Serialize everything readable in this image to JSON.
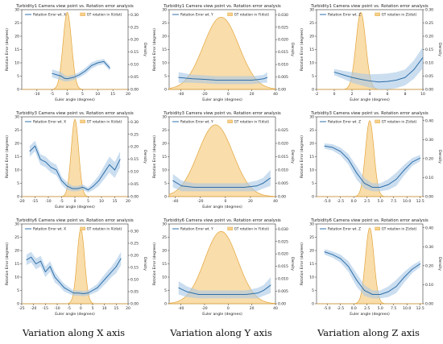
{
  "captions": [
    "Variation along X axis",
    "Variation along Y axis",
    "Variation along Z axis"
  ],
  "colors": {
    "line": "#2f6fa8",
    "band": "#a9c8e6",
    "density_fill": "#f7d18d",
    "density_edge": "#e3a53d"
  },
  "chart_data": [
    {
      "type": "line",
      "title": "Turbidity1 Camera view point vs. Rotation error analysis",
      "xlabel": "Euler angle (degrees)",
      "ylabel": "Rotation Error (degrees)",
      "y2label": "Density",
      "legend": [
        "Rotation Error wt. X",
        "GT rotation in X(dist)"
      ],
      "xlim": [
        -15,
        20
      ],
      "ylim": [
        0,
        30
      ],
      "y2lim": [
        0,
        0.32
      ],
      "xticks": [
        -10,
        -5,
        0,
        5,
        10,
        15,
        20
      ],
      "yticks": [
        0,
        5,
        10,
        15,
        20,
        25,
        30
      ],
      "y2ticks": [
        0.0,
        0.05,
        0.1,
        0.15,
        0.2,
        0.25,
        0.3
      ],
      "x": [
        -5,
        -3.5,
        -2,
        -1,
        0,
        2,
        4,
        6,
        8,
        10,
        12,
        14
      ],
      "y": [
        6,
        5.5,
        5,
        4.2,
        4,
        4.5,
        5.5,
        7,
        9,
        10,
        10.5,
        8
      ],
      "band": [
        1.5,
        1.5,
        1.5,
        1.2,
        1,
        1,
        1,
        1.2,
        1.2,
        1,
        1,
        1
      ],
      "density": {
        "center": 0,
        "width": 1.4,
        "peak": 0.31,
        "shape": "normal"
      }
    },
    {
      "type": "line",
      "title": "Turbidity1 Camera view point vs. Rotation error analysis",
      "xlabel": "Euler angle (degrees)",
      "ylabel": "Rotation Error (degrees)",
      "y2label": "Density",
      "legend": [
        "Rotation Error wt. Y",
        "GT rotation in Y(dist)"
      ],
      "xlim": [
        -50,
        40
      ],
      "ylim": [
        0,
        30
      ],
      "y2lim": [
        0,
        0.032
      ],
      "xticks": [
        -40,
        -20,
        0,
        20,
        40
      ],
      "yticks": [
        0,
        5,
        10,
        15,
        20,
        25,
        30
      ],
      "y2ticks": [
        0.0,
        0.005,
        0.01,
        0.015,
        0.02,
        0.025,
        0.03
      ],
      "x": [
        -42,
        -30,
        -20,
        -10,
        0,
        10,
        20,
        25,
        30,
        33
      ],
      "y": [
        4.5,
        4,
        3.8,
        3.5,
        3.5,
        3.5,
        3.5,
        3.7,
        4,
        4.5
      ],
      "band": [
        2,
        1.5,
        1.5,
        1.5,
        1.5,
        1.5,
        1.5,
        1.5,
        1.5,
        2
      ],
      "density": {
        "center": -6,
        "width": 15,
        "peak": 0.029,
        "shape": "normal"
      }
    },
    {
      "type": "line",
      "title": "Turbidity1 Camera view point vs. Rotation error analysis",
      "xlabel": "Euler angle (degrees)",
      "ylabel": "Rotation Error (degrees)",
      "y2label": "Density",
      "legend": [
        "Rotation Error wt. Z",
        "GT rotation in Z(dist)"
      ],
      "xlim": [
        -2,
        10
      ],
      "ylim": [
        0,
        30
      ],
      "y2lim": [
        0,
        0.3
      ],
      "xticks": [
        -2,
        0,
        2,
        4,
        6,
        8,
        10
      ],
      "yticks": [
        0,
        5,
        10,
        15,
        20,
        25,
        30
      ],
      "y2ticks": [
        0.0,
        0.05,
        0.1,
        0.15,
        0.2,
        0.25,
        0.3
      ],
      "x": [
        0,
        1,
        2,
        3,
        4,
        5,
        6,
        7,
        8,
        9,
        10
      ],
      "y": [
        6.5,
        5.5,
        4.5,
        3.8,
        3.2,
        2.8,
        3,
        3.5,
        4.5,
        7.5,
        12
      ],
      "band": [
        1.2,
        1.5,
        2,
        2.2,
        2.5,
        3,
        3,
        3,
        3,
        3.5,
        4
      ],
      "density": {
        "center": 3,
        "width": 0.55,
        "peak": 0.29,
        "shape": "normal"
      }
    },
    {
      "type": "line",
      "title": "Turbidity3 Camera view point vs. Rotation error analysis",
      "xlabel": "Euler angle (degrees)",
      "ylabel": "Rotation Error (degrees)",
      "y2label": "Density",
      "legend": [
        "Rotation Error wt. X",
        "GT rotation in X(dist)"
      ],
      "xlim": [
        -20,
        20
      ],
      "ylim": [
        0,
        30
      ],
      "y2lim": [
        0,
        0.32
      ],
      "xticks": [
        -20,
        -15,
        -10,
        -5,
        0,
        5,
        10,
        15,
        20
      ],
      "yticks": [
        0,
        5,
        10,
        15,
        20,
        25,
        30
      ],
      "y2ticks": [
        0.0,
        0.05,
        0.1,
        0.15,
        0.2,
        0.25,
        0.3
      ],
      "x": [
        -17,
        -15,
        -13,
        -11,
        -9,
        -7,
        -5,
        -3,
        -1,
        1,
        3,
        5,
        7,
        9,
        11,
        13,
        15,
        17
      ],
      "y": [
        17,
        19,
        14,
        13,
        11,
        10,
        6,
        4,
        3,
        3,
        3.5,
        2.5,
        4,
        6,
        9,
        12,
        10,
        14
      ],
      "band": [
        2,
        2,
        2,
        2,
        2,
        2,
        1.5,
        1.5,
        1,
        1,
        1,
        1,
        1.5,
        2,
        2.5,
        3,
        3,
        3
      ],
      "density": {
        "center": 0,
        "width": 1.4,
        "peak": 0.31,
        "shape": "normal"
      }
    },
    {
      "type": "line",
      "title": "Turbidity3 Camera view point vs. Rotation error analysis",
      "xlabel": "Euler angle (degrees)",
      "ylabel": "Rotation Error (degrees)",
      "y2label": "Density",
      "legend": [
        "Rotation Error wt. Y",
        "GT rotation in Y(dist)"
      ],
      "xlim": [
        -45,
        40
      ],
      "ylim": [
        0,
        30
      ],
      "y2lim": [
        0,
        0.03
      ],
      "xticks": [
        -40,
        -20,
        0,
        20,
        40
      ],
      "yticks": [
        0,
        5,
        10,
        15,
        20,
        25,
        30
      ],
      "y2ticks": [
        0.0,
        0.005,
        0.01,
        0.015,
        0.02,
        0.025
      ],
      "x": [
        -42,
        -35,
        -25,
        -15,
        -5,
        5,
        15,
        25,
        30,
        33,
        36
      ],
      "y": [
        6,
        4,
        3.5,
        3.5,
        3.5,
        3.5,
        3.5,
        4,
        5,
        6,
        7
      ],
      "band": [
        2.5,
        2,
        1.5,
        1.5,
        1.5,
        1.5,
        1.5,
        2,
        2,
        2.5,
        3
      ],
      "density": {
        "center": -8,
        "width": 14,
        "peak": 0.027,
        "shape": "normal"
      }
    },
    {
      "type": "line",
      "title": "Turbidity3 Camera view point vs. Rotation error analysis",
      "xlabel": "",
      "ylabel": "Rotation Error (degrees)",
      "y2label": "Density",
      "legend": [
        "Rotation Error wt. Z",
        "GT rotation in Z(dist)"
      ],
      "xlim": [
        -7,
        13
      ],
      "ylim": [
        0,
        30
      ],
      "y2lim": [
        0,
        0.42
      ],
      "xticks": [
        -5.0,
        -2.5,
        0.0,
        2.5,
        5.0,
        7.5,
        10.0,
        12.5
      ],
      "yticks": [
        0,
        5,
        10,
        15,
        20,
        25,
        30
      ],
      "y2ticks": [
        0.0,
        0.1,
        0.2,
        0.3,
        0.4
      ],
      "x": [
        -5.5,
        -4,
        -2.5,
        -1,
        0.5,
        2,
        3.5,
        5,
        6.5,
        8,
        9.5,
        11,
        12.5
      ],
      "y": [
        19,
        18.5,
        17,
        14,
        9,
        5,
        3.5,
        3.5,
        4.5,
        6.5,
        10,
        13,
        14.5
      ],
      "band": [
        1,
        1.2,
        1.5,
        2,
        2.5,
        2,
        1.5,
        1.5,
        2,
        2.5,
        2,
        1.5,
        1.2
      ],
      "density": {
        "center": 3,
        "width": 0.8,
        "peak": 0.4,
        "shape": "normal"
      }
    },
    {
      "type": "line",
      "title": "Turbidity6 Camera view point vs. Rotation error analysis",
      "xlabel": "Euler angle (degrees)",
      "ylabel": "Rotation Error (degrees)",
      "y2label": "Density",
      "legend": [
        "Rotation Error wt. X",
        "GT rotation in X(dist)"
      ],
      "xlim": [
        -25,
        20
      ],
      "ylim": [
        0,
        30
      ],
      "y2lim": [
        0,
        0.33
      ],
      "xticks": [
        -25,
        -20,
        -15,
        -10,
        -5,
        0,
        5,
        10,
        15,
        20
      ],
      "yticks": [
        0,
        5,
        10,
        15,
        20,
        25,
        30
      ],
      "y2ticks": [
        0.0,
        0.05,
        0.1,
        0.15,
        0.2,
        0.25,
        0.3
      ],
      "x": [
        -23,
        -21,
        -19,
        -17,
        -15,
        -13,
        -11,
        -9,
        -7,
        -5,
        -3,
        -1,
        1,
        3,
        5,
        7,
        9,
        11,
        13,
        15,
        17
      ],
      "y": [
        16.5,
        17.5,
        15,
        16,
        12,
        14,
        10,
        8,
        6,
        5,
        4,
        4,
        3.8,
        4,
        5,
        6,
        8,
        10,
        12,
        14,
        17
      ],
      "band": [
        2,
        2,
        2,
        2,
        2,
        2,
        2,
        1.5,
        1.5,
        1.2,
        1,
        1,
        1,
        1,
        1.2,
        1.5,
        1.8,
        2,
        2,
        2.5,
        2.5
      ],
      "density": {
        "center": 0,
        "width": 1.6,
        "peak": 0.31,
        "shape": "normal"
      }
    },
    {
      "type": "line",
      "title": "Turbidity6 Camera view point vs. Rotation error analysis",
      "xlabel": "Euler angle (degrees)",
      "ylabel": "Rotation Error (degrees)",
      "y2label": "Density",
      "legend": [
        "Rotation Error wt. Y",
        "GT rotation in Y(dist)"
      ],
      "xlim": [
        -50,
        40
      ],
      "ylim": [
        0,
        30
      ],
      "y2lim": [
        0,
        0.032
      ],
      "xticks": [
        -40,
        -20,
        0,
        20,
        40
      ],
      "yticks": [
        0,
        5,
        10,
        15,
        20,
        25,
        30
      ],
      "y2ticks": [
        0.0,
        0.005,
        0.01,
        0.015,
        0.02,
        0.025,
        0.03
      ],
      "x": [
        -42,
        -35,
        -25,
        -15,
        -5,
        5,
        15,
        25,
        30,
        33,
        36
      ],
      "y": [
        6,
        4.5,
        3.5,
        3.5,
        3.5,
        3.5,
        3.5,
        4,
        5,
        6,
        7
      ],
      "band": [
        2.5,
        2,
        1.5,
        1.5,
        1.5,
        1.5,
        1.5,
        2,
        2,
        2.5,
        3
      ],
      "density": {
        "center": -6,
        "width": 14,
        "peak": 0.029,
        "shape": "normal"
      }
    },
    {
      "type": "line",
      "title": "Turbidity6 Camera view point vs. Rotation error analysis",
      "xlabel": "Euler angle (degrees)",
      "ylabel": "Rotation Error (degrees)",
      "y2label": "Density",
      "legend": [
        "Rotation Error wt. Z",
        "GT rotation in Z(dist)"
      ],
      "xlim": [
        -7,
        13
      ],
      "ylim": [
        0,
        30
      ],
      "y2lim": [
        0,
        0.42
      ],
      "xticks": [
        -5.0,
        -2.5,
        0.0,
        2.5,
        5.0,
        7.5,
        10.0,
        12.5
      ],
      "yticks": [
        0,
        5,
        10,
        15,
        20,
        25,
        30
      ],
      "y2ticks": [
        0.0,
        0.1,
        0.2,
        0.3,
        0.4
      ],
      "x": [
        -5.5,
        -4,
        -2.5,
        -1,
        0.5,
        2,
        3.5,
        5,
        6.5,
        8,
        9.5,
        11,
        12.5
      ],
      "y": [
        19.5,
        18.5,
        17,
        14,
        9,
        5,
        3.5,
        3.5,
        4.5,
        6.5,
        10,
        13,
        15
      ],
      "band": [
        1,
        1.2,
        1.5,
        2,
        2.5,
        2,
        1.5,
        1.5,
        2,
        2.5,
        2,
        1.5,
        1.2
      ],
      "density": {
        "center": 3,
        "width": 0.8,
        "peak": 0.4,
        "shape": "normal"
      }
    }
  ]
}
